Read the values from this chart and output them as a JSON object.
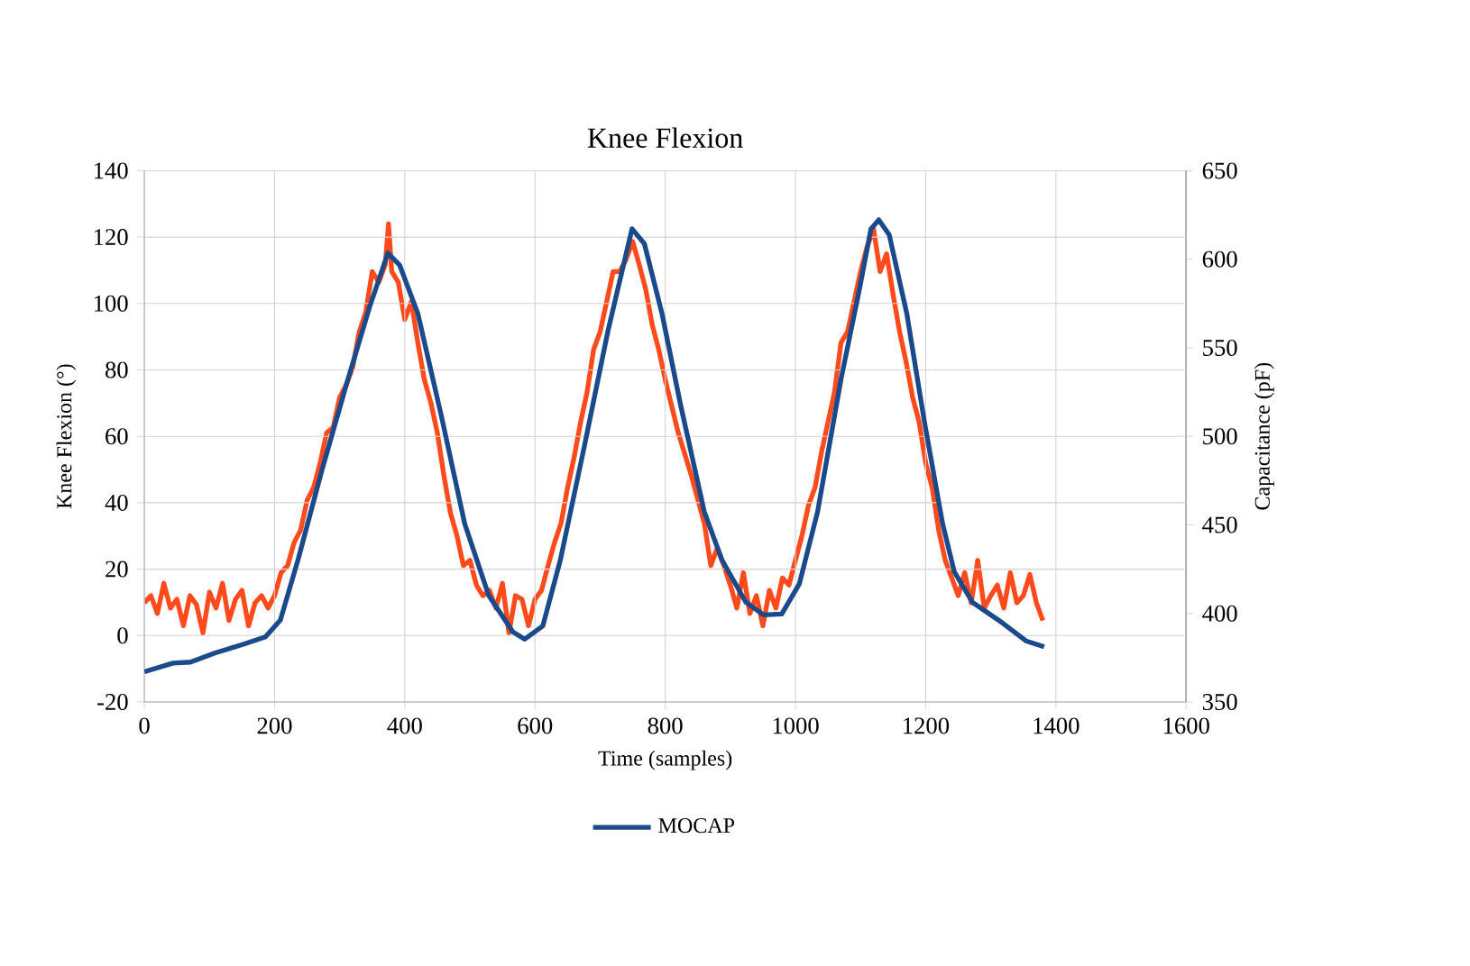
{
  "chart_data": {
    "type": "line",
    "title": "Knee Flexion",
    "xlabel": "Time (samples)",
    "ylabel": "Knee Flexion (°)",
    "y2label": "Capacitance (pF)",
    "xlim": [
      0,
      1600
    ],
    "xticks": [
      0,
      200,
      400,
      600,
      800,
      1000,
      1200,
      1400,
      1600
    ],
    "ylim": [
      -20,
      140
    ],
    "yticks": [
      -20,
      0,
      20,
      40,
      60,
      80,
      100,
      120,
      140
    ],
    "y2lim": [
      350,
      650
    ],
    "y2ticks": [
      350,
      400,
      450,
      500,
      550,
      600,
      650
    ],
    "grid": true,
    "legend": "bottom",
    "marker": "none",
    "line_style": "solid",
    "series": [
      {
        "name": "MOCAP",
        "color": "#1a4a8c",
        "x": [
          0,
          44,
          71,
          108,
          154,
          186,
          209,
          236,
          273,
          310,
          346,
          374,
          392,
          420,
          456,
          492,
          529,
          566,
          584,
          612,
          639,
          676,
          712,
          749,
          768,
          795,
          823,
          860,
          887,
          924,
          951,
          979,
          1006,
          1034,
          1070,
          1098,
          1116,
          1128,
          1144,
          1171,
          1198,
          1226,
          1244,
          1272,
          1318,
          1354,
          1382
        ],
        "values": [
          -10.9,
          -8.3,
          -8,
          -5.3,
          -2.5,
          -0.4,
          4.7,
          22.8,
          50,
          75.4,
          99,
          115.2,
          111.6,
          97,
          66.3,
          33.7,
          12,
          1.1,
          -1.1,
          2.9,
          22.8,
          57.2,
          91.7,
          122.5,
          118,
          97,
          70,
          37.3,
          22.8,
          10,
          6.2,
          6.5,
          15.6,
          37.3,
          77.2,
          104,
          122.5,
          125.2,
          120.7,
          97,
          64.5,
          33.7,
          19.2,
          10,
          3.8,
          -1.6,
          -3.4
        ]
      },
      {
        "color": "#ff4a1c",
        "axis": "y2",
        "x": [
          0,
          10,
          20,
          30,
          40,
          50,
          60,
          70,
          80,
          90,
          100,
          110,
          120,
          130,
          140,
          150,
          160,
          170,
          180,
          190,
          200,
          210,
          220,
          230,
          240,
          250,
          260,
          270,
          280,
          290,
          300,
          310,
          320,
          330,
          340,
          350,
          360,
          370,
          375,
          380,
          390,
          400,
          410,
          420,
          430,
          440,
          450,
          460,
          470,
          480,
          490,
          500,
          510,
          520,
          530,
          540,
          550,
          560,
          570,
          580,
          590,
          600,
          610,
          620,
          630,
          640,
          650,
          660,
          670,
          680,
          690,
          700,
          710,
          720,
          730,
          740,
          750,
          760,
          770,
          780,
          790,
          800,
          820,
          840,
          860,
          870,
          880,
          890,
          900,
          910,
          920,
          930,
          940,
          950,
          960,
          970,
          980,
          990,
          1000,
          1010,
          1020,
          1030,
          1040,
          1050,
          1060,
          1070,
          1080,
          1090,
          1100,
          1110,
          1120,
          1130,
          1140,
          1150,
          1160,
          1170,
          1180,
          1190,
          1200,
          1210,
          1220,
          1230,
          1240,
          1250,
          1260,
          1270,
          1280,
          1290,
          1300,
          1310,
          1320,
          1330,
          1340,
          1350,
          1360,
          1370,
          1380
        ],
        "values": [
          406,
          410,
          400,
          417,
          403,
          408,
          393,
          410,
          405,
          389,
          412,
          403,
          417,
          396,
          408,
          413,
          393,
          406,
          410,
          403,
          410,
          423,
          427,
          440,
          447,
          464,
          471,
          485,
          502,
          505,
          522,
          529,
          539,
          559,
          570,
          593,
          587,
          597,
          620,
          593,
          587,
          566,
          576,
          553,
          532,
          519,
          502,
          478,
          457,
          444,
          427,
          430,
          416,
          410,
          413,
          403,
          417,
          389,
          410,
          408,
          393,
          408,
          413,
          427,
          440,
          451,
          471,
          488,
          508,
          525,
          549,
          559,
          576,
          593,
          593,
          600,
          610,
          597,
          583,
          563,
          549,
          532,
          502,
          478,
          451,
          427,
          437,
          427,
          416,
          403,
          423,
          400,
          410,
          393,
          413,
          403,
          420,
          416,
          430,
          444,
          461,
          471,
          491,
          508,
          525,
          553,
          559,
          576,
          593,
          607,
          617,
          593,
          603,
          580,
          559,
          542,
          522,
          508,
          485,
          471,
          447,
          430,
          420,
          410,
          423,
          406,
          430,
          403,
          410,
          416,
          403,
          423,
          406,
          410,
          422,
          406,
          396
        ]
      }
    ]
  }
}
